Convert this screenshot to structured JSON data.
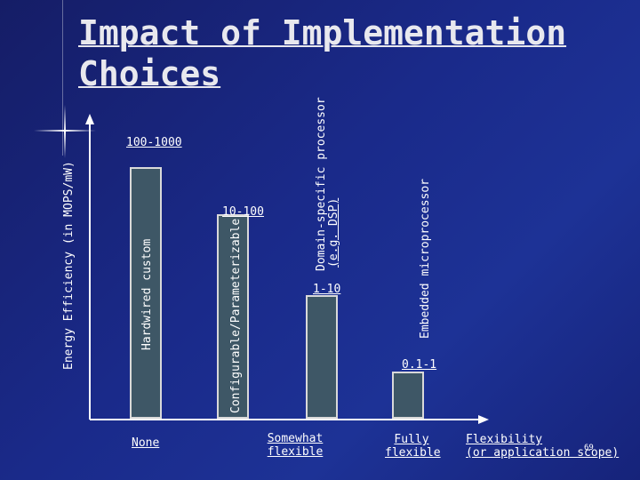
{
  "slide": {
    "title_line1": "Impact of Implementation",
    "title_line2": "Choices",
    "page_number": "69"
  },
  "chart_data": {
    "type": "bar",
    "ylabel": "Energy Efficiency (in MOPS/mW)",
    "xlabel_line1": "Flexibility",
    "xlabel_line2": "(or application scope)",
    "x_ticks": [
      {
        "line1": "None",
        "line2": ""
      },
      {
        "line1": "Somewhat",
        "line2": "flexible"
      },
      {
        "line1": "Fully",
        "line2": "flexible"
      }
    ],
    "categories": [
      "Hardwired custom",
      "Configurable/Parameterizable",
      "Domain-specific processor (e.g. DSP)",
      "Embedded microprocessor"
    ],
    "category_lines": [
      {
        "line1": "Hardwired custom",
        "line2": ""
      },
      {
        "line1": "Configurable/Parameterizable",
        "line2": ""
      },
      {
        "line1": "Domain-specific processor",
        "line2": "(e.g. DSP)"
      },
      {
        "line1": "Embedded microprocessor",
        "line2": ""
      }
    ],
    "value_labels": [
      "100-1000",
      "10-100",
      "1-10",
      "0.1-1"
    ],
    "relative_height": [
      0.96,
      0.78,
      0.47,
      0.18
    ]
  }
}
